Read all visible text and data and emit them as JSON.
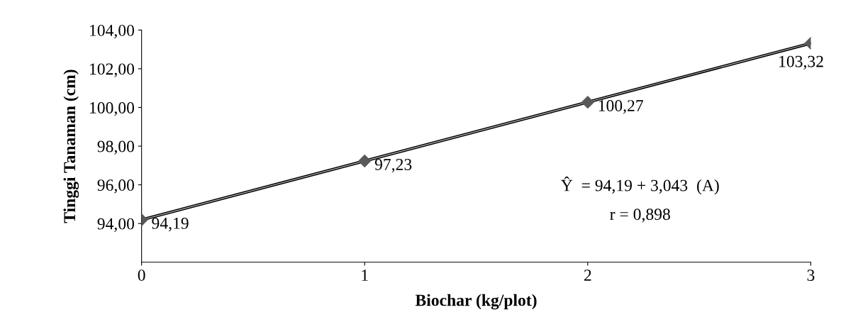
{
  "chart_data": {
    "type": "scatter",
    "xlabel": "Biochar (kg/plot)",
    "ylabel": "Tinggi Tanaman (cm)",
    "x": [
      0,
      1,
      2,
      3
    ],
    "series": [
      {
        "type": "line",
        "color": "#000000",
        "x": [
          0,
          3
        ],
        "values": [
          94.19,
          103.32
        ],
        "marker": "none",
        "line_style": "solid"
      },
      {
        "color": "#595959",
        "values": [
          94.19,
          97.23,
          100.27,
          103.32
        ],
        "marker": "diamond",
        "value_labels": [
          "94,19",
          "97,23",
          "100,27",
          "103,32"
        ]
      }
    ],
    "xlim": [
      0,
      3
    ],
    "xticks": [
      0,
      1,
      2,
      3
    ],
    "ylim": [
      92,
      104
    ],
    "yticks": [
      {
        "value": 94,
        "label": "94,00"
      },
      {
        "value": 96,
        "label": "96,00"
      },
      {
        "value": 98,
        "label": "98,00"
      },
      {
        "value": 100,
        "label": "100,00"
      },
      {
        "value": 102,
        "label": "102,00"
      },
      {
        "value": 104,
        "label": "104,00"
      }
    ],
    "grid": false,
    "annotations": [
      "Ŷ  = 94,19 + 3,043  (A)",
      "r = 0,898"
    ]
  }
}
